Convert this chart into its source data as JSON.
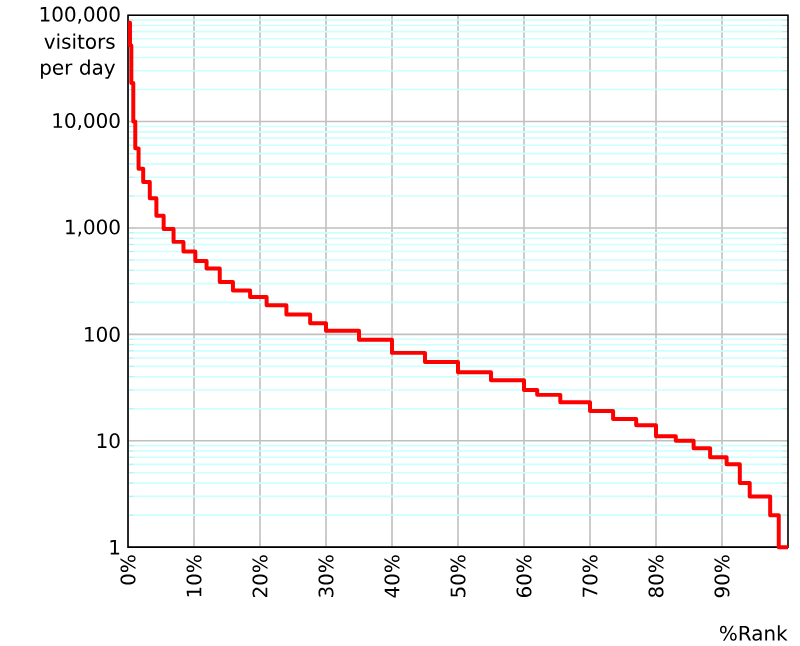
{
  "chart_data": {
    "type": "step",
    "ylabel": "visitors per day",
    "xlabel": "%Rank",
    "color": "#ff0000",
    "x": [
      0,
      0.3,
      0.5,
      0.8,
      1.1,
      1.6,
      2.3,
      3.3,
      4.3,
      5.4,
      6.9,
      8.4,
      10.2,
      11.9,
      13.9,
      15.9,
      18.5,
      21,
      24,
      27.6,
      30,
      35,
      40,
      45,
      50,
      55,
      60,
      62,
      65.5,
      70,
      73.5,
      77,
      80,
      83,
      85.7,
      88.2,
      90.7,
      92.7,
      94.2,
      97.3,
      98.6,
      100
    ],
    "values": [
      85000,
      52000,
      23000,
      10000,
      5600,
      3600,
      2700,
      1900,
      1300,
      980,
      740,
      600,
      490,
      415,
      310,
      258,
      224,
      188,
      154,
      127,
      108,
      89,
      67,
      55,
      44,
      37,
      30,
      27,
      23,
      19,
      16,
      14,
      11,
      10,
      8.5,
      7,
      6,
      4,
      3,
      2,
      1,
      1
    ],
    "xlim": [
      0,
      100
    ],
    "ylim": [
      1,
      100000
    ],
    "log": "y",
    "grid": true,
    "xticks": [
      {
        "value": 0,
        "label": "0%"
      },
      {
        "value": 10,
        "label": "10%"
      },
      {
        "value": 20,
        "label": "20%"
      },
      {
        "value": 30,
        "label": "30%"
      },
      {
        "value": 40,
        "label": "40%"
      },
      {
        "value": 50,
        "label": "50%"
      },
      {
        "value": 60,
        "label": "60%"
      },
      {
        "value": 70,
        "label": "70%"
      },
      {
        "value": 80,
        "label": "80%"
      },
      {
        "value": 90,
        "label": "90%"
      }
    ],
    "yticks": [
      1,
      10,
      100,
      {
        "value": 1000,
        "label": "1,000"
      },
      {
        "value": 10000,
        "label": "10,000"
      },
      {
        "value": 100000,
        "label": "100,000"
      },
      {
        "value": 2,
        "label": null
      },
      {
        "value": 3,
        "label": null
      },
      {
        "value": 4,
        "label": null
      },
      {
        "value": 5,
        "label": null
      },
      {
        "value": 6,
        "label": null
      },
      {
        "value": 7,
        "label": null
      },
      {
        "value": 8,
        "label": null
      },
      {
        "value": 9,
        "label": null
      },
      {
        "value": 20,
        "label": null
      },
      {
        "value": 30,
        "label": null
      },
      {
        "value": 40,
        "label": null
      },
      {
        "value": 50,
        "label": null
      },
      {
        "value": 60,
        "label": null
      },
      {
        "value": 70,
        "label": null
      },
      {
        "value": 80,
        "label": null
      },
      {
        "value": 90,
        "label": null
      },
      {
        "value": 200,
        "label": null
      },
      {
        "value": 300,
        "label": null
      },
      {
        "value": 400,
        "label": null
      },
      {
        "value": 500,
        "label": null
      },
      {
        "value": 600,
        "label": null
      },
      {
        "value": 700,
        "label": null
      },
      {
        "value": 800,
        "label": null
      },
      {
        "value": 900,
        "label": null
      },
      {
        "value": 2000,
        "label": null
      },
      {
        "value": 3000,
        "label": null
      },
      {
        "value": 4000,
        "label": null
      },
      {
        "value": 5000,
        "label": null
      },
      {
        "value": 6000,
        "label": null
      },
      {
        "value": 7000,
        "label": null
      },
      {
        "value": 8000,
        "label": null
      },
      {
        "value": 9000,
        "label": null
      },
      {
        "value": 20000,
        "label": null
      },
      {
        "value": 30000,
        "label": null
      },
      {
        "value": 40000,
        "label": null
      },
      {
        "value": 50000,
        "label": null
      },
      {
        "value": 60000,
        "label": null
      },
      {
        "value": 70000,
        "label": null
      },
      {
        "value": 80000,
        "label": null
      },
      {
        "value": 90000,
        "label": null
      }
    ]
  }
}
